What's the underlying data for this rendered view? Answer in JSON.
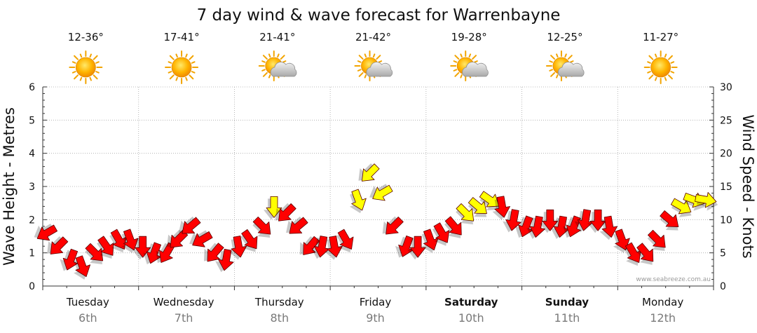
{
  "chart_data": {
    "type": "line",
    "title": "7 day wind & wave forecast for Warrenbayne",
    "ylabel_left": "Wave Height - Metres",
    "ylabel_right": "Wind Speed - Knots",
    "ylim_left": [
      0,
      6
    ],
    "ylim_right": [
      0,
      30
    ],
    "yticks_left": [
      "0",
      "1",
      "2",
      "3",
      "4",
      "5",
      "6"
    ],
    "yticks_right": [
      "0",
      "5",
      "10",
      "15",
      "20",
      "25",
      "30"
    ],
    "grid": true,
    "credit": "www.seabreeze.com.au",
    "days": [
      {
        "name": "Tuesday",
        "date": "6th",
        "temp": "12-36°",
        "weather_icon": "sun-icon",
        "weekend": false
      },
      {
        "name": "Wednesday",
        "date": "7th",
        "temp": "17-41°",
        "weather_icon": "sun-icon",
        "weekend": false
      },
      {
        "name": "Thursday",
        "date": "8th",
        "temp": "21-41°",
        "weather_icon": "sun-cloud-icon",
        "weekend": false
      },
      {
        "name": "Friday",
        "date": "9th",
        "temp": "21-42°",
        "weather_icon": "sun-cloud-icon",
        "weekend": false
      },
      {
        "name": "Saturday",
        "date": "10th",
        "temp": "19-28°",
        "weather_icon": "sun-cloud-icon",
        "weekend": true
      },
      {
        "name": "Sunday",
        "date": "11th",
        "temp": "12-25°",
        "weather_icon": "sun-cloud-icon",
        "weekend": true
      },
      {
        "name": "Monday",
        "date": "12th",
        "temp": "11-27°",
        "weather_icon": "sun-icon",
        "weekend": false
      }
    ],
    "wind_series": {
      "name": "Wind Speed",
      "unit": "knots",
      "x_day": [
        0.0,
        0.12,
        0.25,
        0.37,
        0.5,
        0.62,
        0.75,
        0.87,
        1.0,
        1.12,
        1.25,
        1.37,
        1.5,
        1.62,
        1.75,
        1.87,
        2.0,
        2.12,
        2.25,
        2.37,
        2.5,
        2.62,
        2.75,
        2.87,
        3.0,
        3.12,
        3.25,
        3.37,
        3.5,
        3.62,
        3.75,
        3.87,
        4.0,
        4.12,
        4.25,
        4.37,
        4.5,
        4.62,
        4.75,
        4.87,
        5.0,
        5.12,
        5.25,
        5.37,
        5.5,
        5.62,
        5.75,
        5.87,
        6.0,
        6.12,
        6.25,
        6.37,
        6.5,
        6.62,
        6.75,
        6.87
      ],
      "knots": [
        8,
        6,
        4,
        3,
        5,
        6,
        7,
        7,
        6,
        5,
        5,
        7,
        9,
        7,
        5,
        4,
        6,
        7,
        9,
        12,
        11,
        9,
        6,
        6,
        6,
        7,
        13,
        17,
        14,
        9,
        6,
        6,
        7,
        8,
        9,
        11,
        12,
        13,
        12,
        10,
        9,
        9,
        10,
        9,
        9,
        10,
        10,
        9,
        7,
        5,
        5,
        7,
        10,
        12,
        13,
        13
      ],
      "colors": [
        "#ff0000",
        "#ff0000",
        "#ff0000",
        "#ff0000",
        "#ff0000",
        "#ff0000",
        "#ff0000",
        "#ff0000",
        "#ff0000",
        "#ff0000",
        "#ff0000",
        "#ff0000",
        "#ff0000",
        "#ff0000",
        "#ff0000",
        "#ff0000",
        "#ff0000",
        "#ff0000",
        "#ff0000",
        "#ffff00",
        "#ff0000",
        "#ff0000",
        "#ff0000",
        "#ff0000",
        "#ff0000",
        "#ff0000",
        "#ffff00",
        "#ffff00",
        "#ffff00",
        "#ff0000",
        "#ff0000",
        "#ff0000",
        "#ff0000",
        "#ff0000",
        "#ff0000",
        "#ffff00",
        "#ffff00",
        "#ffff00",
        "#ff0000",
        "#ff0000",
        "#ff0000",
        "#ff0000",
        "#ff0000",
        "#ff0000",
        "#ff0000",
        "#ff0000",
        "#ff0000",
        "#ff0000",
        "#ff0000",
        "#ff0000",
        "#ff0000",
        "#ff0000",
        "#ff0000",
        "#ffff00",
        "#ffff00",
        "#ffff00"
      ],
      "direction_deg": [
        150,
        135,
        110,
        70,
        45,
        55,
        60,
        70,
        90,
        110,
        120,
        135,
        140,
        150,
        130,
        100,
        80,
        55,
        45,
        90,
        135,
        140,
        130,
        100,
        80,
        60,
        70,
        135,
        150,
        135,
        110,
        90,
        70,
        60,
        50,
        45,
        40,
        35,
        80,
        100,
        110,
        100,
        90,
        100,
        110,
        100,
        90,
        80,
        70,
        60,
        50,
        45,
        40,
        30,
        20,
        10
      ]
    }
  }
}
